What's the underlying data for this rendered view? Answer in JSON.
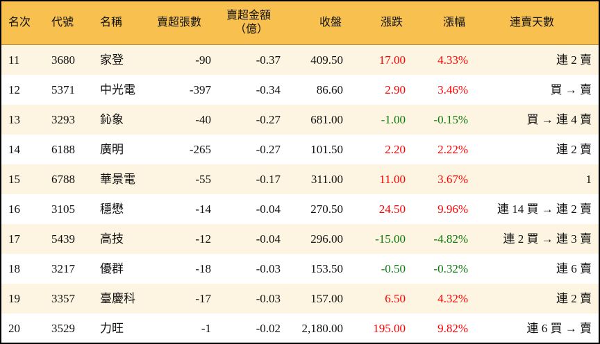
{
  "headers": [
    "名次",
    "代號",
    "名稱",
    "賣超張數",
    "賣超金額",
    "（億）",
    "收盤",
    "漲跌",
    "漲幅",
    "連賣天數"
  ],
  "colors": {
    "header_bg": "#F8C14F",
    "odd_row_bg": "#FDF5E1",
    "up": "#FF0000",
    "down": "#0A7A0A"
  },
  "rows": [
    {
      "rank": "11",
      "code": "3680",
      "name": "家登",
      "shares": "-90",
      "amount": "-0.37",
      "close": "409.50",
      "change": "17.00",
      "pct": "4.33%",
      "dir": "up",
      "streak": "連 2 賣"
    },
    {
      "rank": "12",
      "code": "5371",
      "name": "中光電",
      "shares": "-397",
      "amount": "-0.34",
      "close": "86.60",
      "change": "2.90",
      "pct": "3.46%",
      "dir": "up",
      "streak": "買 → 賣"
    },
    {
      "rank": "13",
      "code": "3293",
      "name": "鈊象",
      "shares": "-40",
      "amount": "-0.27",
      "close": "681.00",
      "change": "-1.00",
      "pct": "-0.15%",
      "dir": "down",
      "streak": "買 → 連 4 賣"
    },
    {
      "rank": "14",
      "code": "6188",
      "name": "廣明",
      "shares": "-265",
      "amount": "-0.27",
      "close": "101.50",
      "change": "2.20",
      "pct": "2.22%",
      "dir": "up",
      "streak": "連 2 賣"
    },
    {
      "rank": "15",
      "code": "6788",
      "name": "華景電",
      "shares": "-55",
      "amount": "-0.17",
      "close": "311.00",
      "change": "11.00",
      "pct": "3.67%",
      "dir": "up",
      "streak": "1"
    },
    {
      "rank": "16",
      "code": "3105",
      "name": "穩懋",
      "shares": "-14",
      "amount": "-0.04",
      "close": "270.50",
      "change": "24.50",
      "pct": "9.96%",
      "dir": "up",
      "streak": "連 14 買 → 連 2 賣"
    },
    {
      "rank": "17",
      "code": "5439",
      "name": "高技",
      "shares": "-12",
      "amount": "-0.04",
      "close": "296.00",
      "change": "-15.00",
      "pct": "-4.82%",
      "dir": "down",
      "streak": "連 2 買 → 連 3 賣"
    },
    {
      "rank": "18",
      "code": "3217",
      "name": "優群",
      "shares": "-18",
      "amount": "-0.03",
      "close": "153.50",
      "change": "-0.50",
      "pct": "-0.32%",
      "dir": "down",
      "streak": "連 6 賣"
    },
    {
      "rank": "19",
      "code": "3357",
      "name": "臺慶科",
      "shares": "-17",
      "amount": "-0.03",
      "close": "157.00",
      "change": "6.50",
      "pct": "4.32%",
      "dir": "up",
      "streak": "連 2 賣"
    },
    {
      "rank": "20",
      "code": "3529",
      "name": "力旺",
      "shares": "-1",
      "amount": "-0.02",
      "close": "2,180.00",
      "change": "195.00",
      "pct": "9.82%",
      "dir": "up",
      "streak": "連 6 買 → 賣"
    }
  ]
}
